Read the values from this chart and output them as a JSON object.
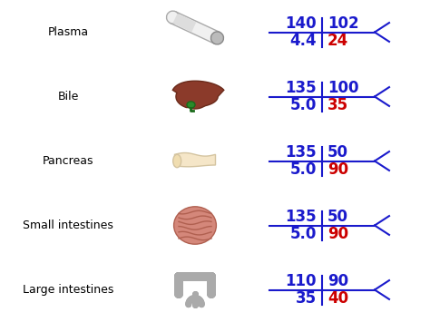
{
  "rows": [
    {
      "label": "Plasma",
      "top_left": "140",
      "top_right": "102",
      "bot_left": "4.4",
      "bot_right": "24",
      "bot_right_color": "red"
    },
    {
      "label": "Bile",
      "top_left": "135",
      "top_right": "100",
      "bot_left": "5.0",
      "bot_right": "35",
      "bot_right_color": "red"
    },
    {
      "label": "Pancreas",
      "top_left": "135",
      "top_right": "50",
      "bot_left": "5.0",
      "bot_right": "90",
      "bot_right_color": "red"
    },
    {
      "label": "Small intestines",
      "top_left": "135",
      "top_right": "50",
      "bot_left": "5.0",
      "bot_right": "90",
      "bot_right_color": "red"
    },
    {
      "label": "Large intestines",
      "top_left": "110",
      "top_right": "90",
      "bot_left": "35",
      "bot_right": "40",
      "bot_right_color": "red"
    }
  ],
  "label_color": "black",
  "number_color_blue": "#1a1acc",
  "number_color_red": "#cc0000",
  "bg_color": "white",
  "label_fontsize": 9,
  "number_fontsize": 12,
  "cross_color": "#1a1acc",
  "cross_linewidth": 1.5
}
